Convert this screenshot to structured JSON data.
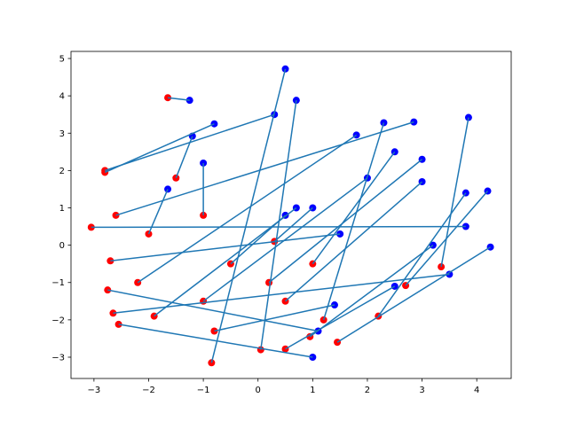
{
  "chart_data": {
    "type": "scatter",
    "series": [
      {
        "color": "#ff0000",
        "x": [
          -3.05,
          -2.8,
          -2.8,
          -1.65,
          -2.7,
          -2.75,
          -2.65,
          -2.55,
          -0.85,
          -0.8,
          0.05,
          0.5,
          0.95,
          1.45,
          2.2,
          2.7,
          3.35,
          -2.6,
          -2.2,
          -1.9,
          -1.0,
          0.5,
          1.2,
          -1.5,
          -2.0,
          0.3,
          -0.5,
          1.0,
          -1.0,
          0.2
        ],
        "values": [
          0.48,
          2.0,
          1.95,
          3.95,
          -0.42,
          -1.2,
          -1.82,
          -2.12,
          -3.15,
          -2.3,
          -2.8,
          -2.78,
          -2.45,
          -2.6,
          -1.9,
          -1.08,
          -0.58,
          0.8,
          -1.0,
          -1.9,
          -1.5,
          -1.5,
          -2.0,
          1.8,
          0.3,
          0.1,
          -0.5,
          -0.5,
          0.8,
          -1.0
        ]
      },
      {
        "color": "#0000ff",
        "x": [
          3.8,
          0.3,
          -0.8,
          -1.25,
          1.5,
          1.1,
          3.5,
          1.0,
          0.5,
          1.4,
          0.7,
          2.5,
          3.2,
          4.25,
          3.8,
          4.2,
          3.85,
          2.85,
          1.8,
          0.7,
          2.0,
          3.0,
          2.3,
          -1.2,
          -1.65,
          1.0,
          0.5,
          2.5,
          -1.0,
          3.0
        ],
        "values": [
          0.5,
          3.5,
          3.25,
          3.88,
          0.3,
          -2.3,
          -0.78,
          -3.0,
          4.72,
          -1.6,
          3.88,
          -1.1,
          0.0,
          -0.05,
          1.4,
          1.45,
          3.42,
          3.3,
          2.95,
          1.0,
          1.8,
          1.7,
          3.28,
          2.92,
          1.5,
          1.0,
          0.8,
          2.5,
          2.2,
          2.3
        ]
      }
    ],
    "connector_color": "#1f77b4",
    "xlim": [
      -3.42,
      4.63
    ],
    "ylim": [
      -3.57,
      5.19
    ],
    "xticks": [
      {
        "value": -3,
        "label": "−3"
      },
      {
        "value": -2,
        "label": "−2"
      },
      {
        "value": -1,
        "label": "−1"
      },
      0,
      1,
      2,
      3,
      4
    ],
    "yticks": [
      {
        "value": -3,
        "label": "−3"
      },
      {
        "value": -2,
        "label": "−2"
      },
      {
        "value": -1,
        "label": "−1"
      },
      0,
      1,
      2,
      3,
      4,
      5
    ]
  }
}
